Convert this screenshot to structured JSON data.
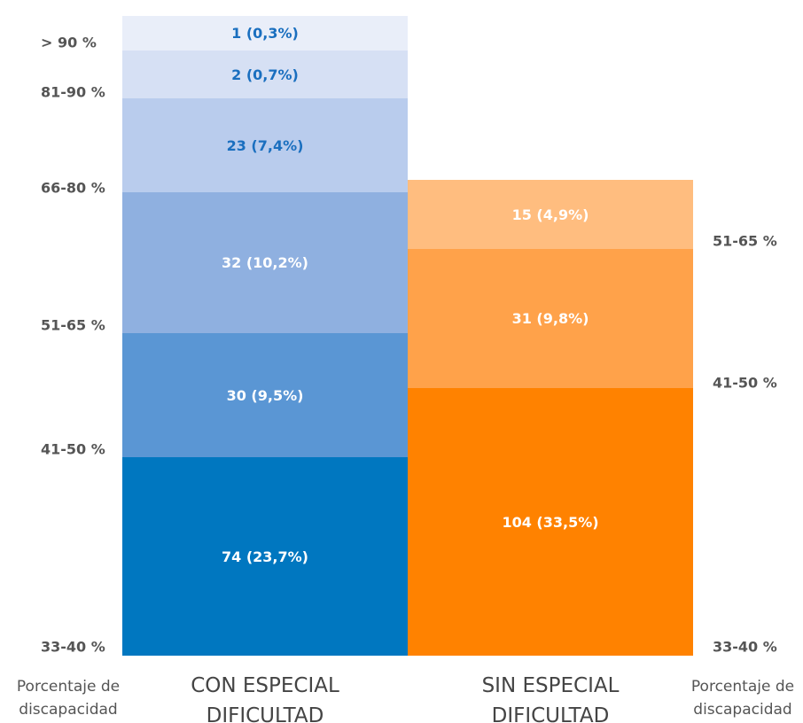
{
  "columns": [
    {
      "title": "CON ESPECIAL DIFICULTAD",
      "segments": [
        "74 (23,7%)",
        "30 (9,5%)",
        "32 (10,2%)",
        "23 (7,4%)",
        "2 (0,7%)",
        "1 (0,3%)"
      ],
      "scale": [
        "33-40 %",
        "41-50 %",
        "51-65 %",
        "66-80 %",
        "81-90 %",
        "> 90 %"
      ]
    },
    {
      "title": "SIN ESPECIAL DIFICULTAD",
      "segments": [
        "104 (33,5%)",
        "31 (9,8%)",
        "15 (4,9%)"
      ],
      "scale": [
        "33-40 %",
        "41-50 %",
        "51-65 %"
      ]
    }
  ],
  "scale_caption": "Porcentaje de discapacidad"
}
